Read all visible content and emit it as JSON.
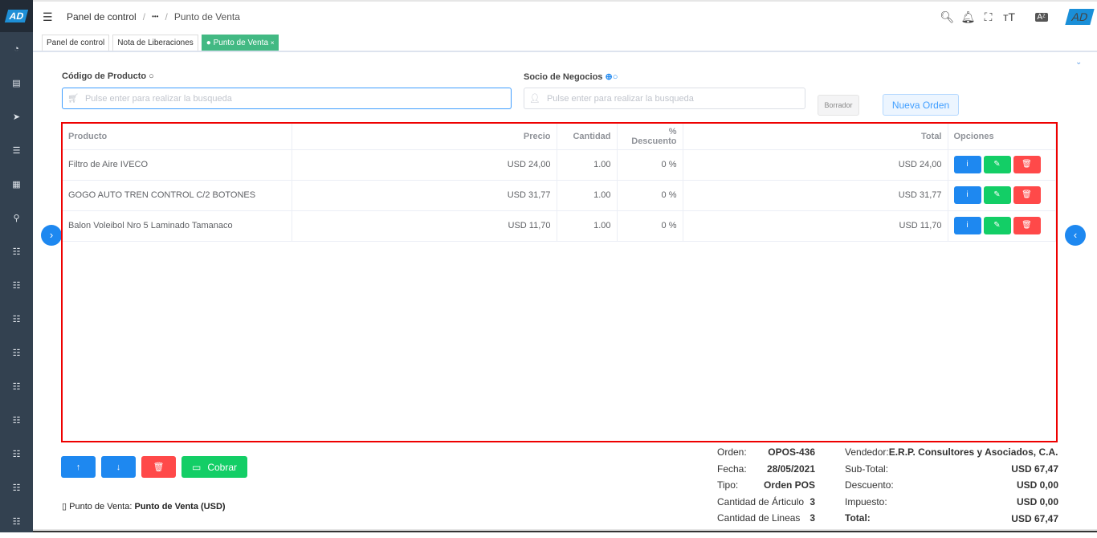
{
  "brand": {
    "logo": "AD"
  },
  "sidebar": {
    "icons": [
      "dashboard-icon",
      "document-icon",
      "send-icon",
      "list-icon",
      "report-icon",
      "search-icon",
      "menu-list-icon",
      "menu-list-icon",
      "menu-list-icon",
      "menu-list-icon",
      "menu-list-icon",
      "menu-list-icon",
      "menu-list-icon",
      "menu-list-icon",
      "menu-list-icon"
    ]
  },
  "header": {
    "breadcrumb": [
      "Panel de control",
      "•••",
      "Punto de Venta"
    ],
    "icons": [
      "search-icon",
      "bell-icon",
      "fullscreen-icon",
      "font-size-icon",
      "translate-icon"
    ]
  },
  "tabs": [
    {
      "label": "Panel de control"
    },
    {
      "label": "Nota de Liberaciones"
    },
    {
      "label": "Punto de Venta",
      "active": true,
      "close": "×"
    }
  ],
  "form": {
    "product_label": "Código de Producto",
    "product_placeholder": "Pulse enter para realizar la busqueda",
    "partner_label": "Socio de Negocios",
    "partner_placeholder": "Pulse enter para realizar la busqueda",
    "draft_button": "Borrador",
    "new_order_button": "Nueva Orden"
  },
  "table": {
    "headers": [
      "Producto",
      "Precio",
      "Cantidad",
      "% Descuento",
      "Total",
      "Opciones"
    ],
    "rows": [
      [
        "Filtro de Aire IVECO",
        "USD 24,00",
        "1.00",
        "0 %",
        "USD 24,00"
      ],
      [
        "GOGO AUTO TREN CONTROL C/2 BOTONES",
        "USD 31,77",
        "1.00",
        "0 %",
        "USD 31,77"
      ],
      [
        "Balon Voleibol Nro 5 Laminado Tamanaco",
        "USD 11,70",
        "1.00",
        "0 %",
        "USD 11,70"
      ]
    ]
  },
  "actions": {
    "collect": "Cobrar"
  },
  "pos": {
    "label": "Punto de Venta:",
    "value": "Punto de Venta (USD)"
  },
  "summary": {
    "order_label": "Orden:",
    "order": "OPOS-436",
    "date_label": "Fecha:",
    "date": "28/05/2021",
    "type_label": "Tipo:",
    "type": "Orden POS",
    "items_label": "Cantidad de Árticulo",
    "items": "3",
    "lines_label": "Cantidad de Lineas",
    "lines": "3",
    "seller_label": "Vendedor:",
    "seller": "E.R.P. Consultores y Asociados, C.A.",
    "subtotal_label": "Sub-Total:",
    "subtotal": "USD 67,47",
    "discount_label": "Descuento:",
    "discount": "USD 0,00",
    "tax_label": "Impuesto:",
    "tax": "USD 0,00",
    "total_label": "Total:",
    "total": "USD 67,47"
  },
  "colors": {
    "primary": "#1e88f0",
    "success": "#13ce66",
    "danger": "#ff4949",
    "tab_active": "#42b983",
    "sidebar": "#334150",
    "highlight": "#ee0000"
  }
}
